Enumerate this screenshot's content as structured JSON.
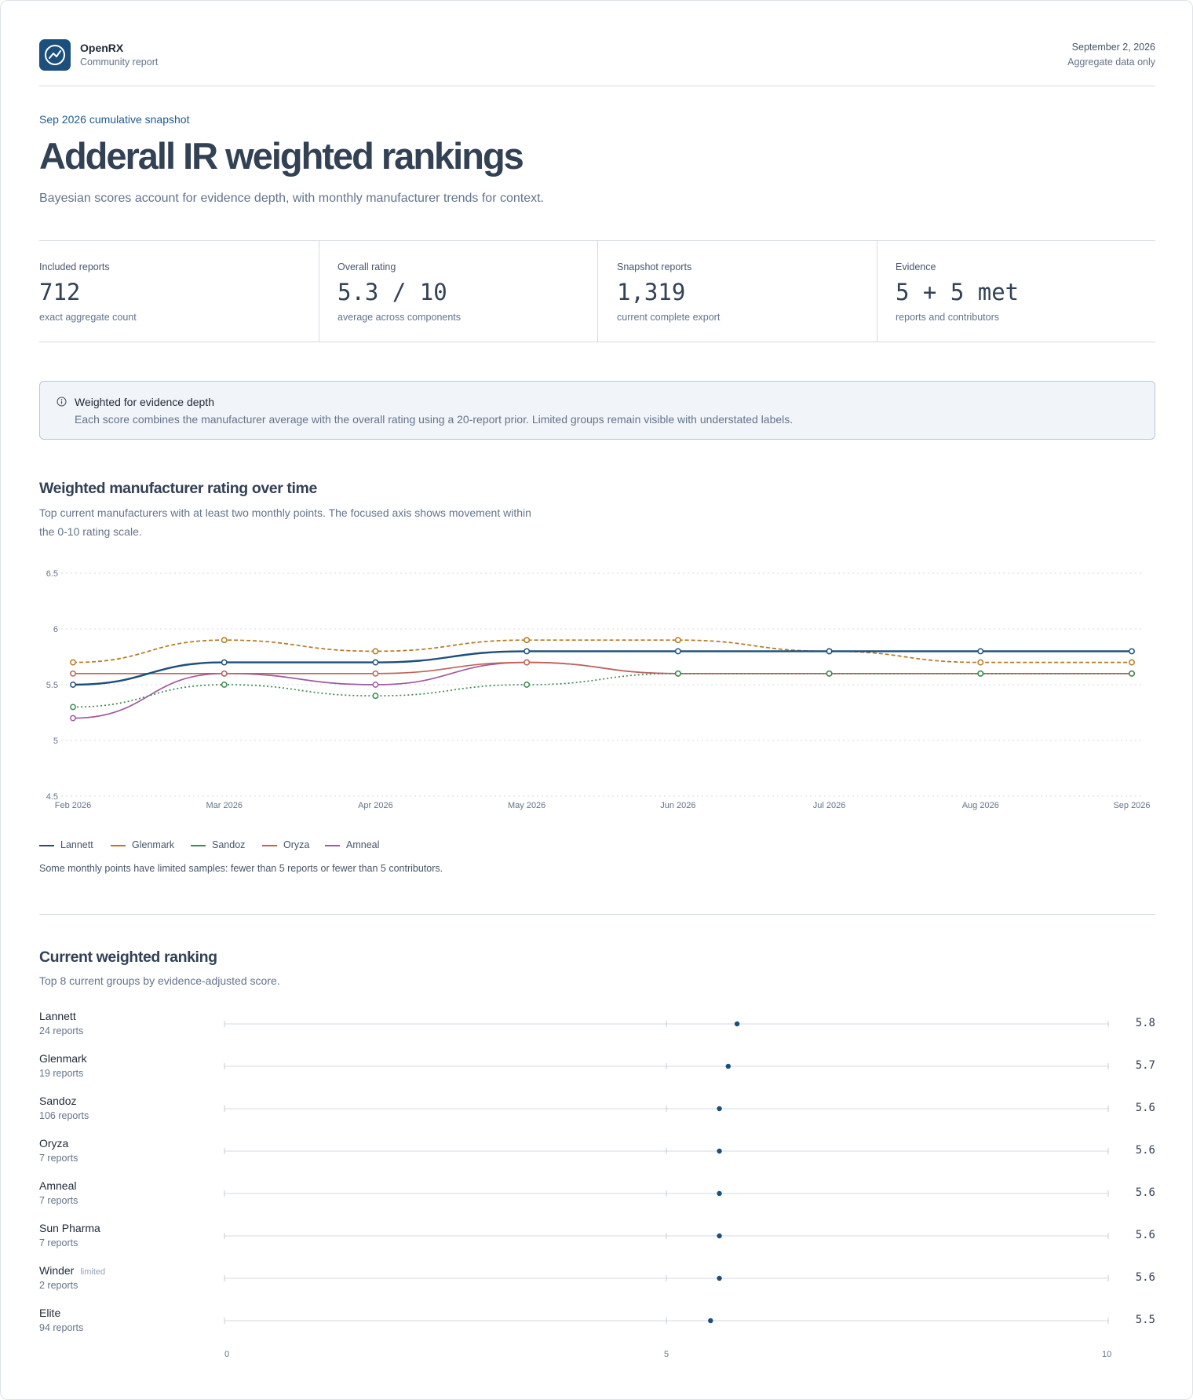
{
  "header": {
    "brand": "OpenRX",
    "brand_sub": "Community report",
    "date": "September 2, 2026",
    "note": "Aggregate data only"
  },
  "hero": {
    "eyebrow": "Sep 2026 cumulative snapshot",
    "title": "Adderall IR weighted rankings",
    "subtitle": "Bayesian scores account for evidence depth, with monthly manufacturer trends for context."
  },
  "stats": [
    {
      "label": "Included reports",
      "value": "712",
      "note": "exact aggregate count"
    },
    {
      "label": "Overall rating",
      "value": "5.3 / 10",
      "note": "average across components"
    },
    {
      "label": "Snapshot reports",
      "value": "1,319",
      "note": "current complete export"
    },
    {
      "label": "Evidence",
      "value": "5 + 5 met",
      "note": "reports and contributors"
    }
  ],
  "callout": {
    "title": "Weighted for evidence depth",
    "body": "Each score combines the manufacturer average with the overall rating using a 20-report prior. Limited groups remain visible with understated labels."
  },
  "trend": {
    "title": "Weighted manufacturer rating over time",
    "desc_line1": "Top current manufacturers with at least two monthly points. The focused axis shows movement within",
    "desc_line2": "the 0-10 rating scale.",
    "limited_note": "Some monthly points have limited samples: fewer than 5 reports or fewer than 5 contributors."
  },
  "ranking": {
    "title": "Current weighted ranking",
    "desc": "Top 8 current groups by evidence-adjusted score.",
    "limited_label": "limited"
  },
  "colors": {
    "Lannett": "#1d4f7c",
    "Glenmark": "#b7791f",
    "Sandoz": "#3d8b4d",
    "Oryza": "#c0625a",
    "Amneal": "#a05a9e"
  },
  "chart_data": [
    {
      "type": "line",
      "x": [
        "Feb 2026",
        "Mar 2026",
        "Apr 2026",
        "May 2026",
        "Jun 2026",
        "Jul 2026",
        "Aug 2026",
        "Sep 2026"
      ],
      "ylim": [
        4.5,
        6.5
      ],
      "yticks": [
        "4.5",
        "5",
        "5.5",
        "6",
        "6.5"
      ],
      "grid": true,
      "legend": "bottom-left",
      "series": [
        {
          "name": "Lannett",
          "style": "solid",
          "values": [
            5.5,
            5.7,
            5.7,
            5.8,
            5.8,
            5.8,
            5.8,
            5.8
          ]
        },
        {
          "name": "Glenmark",
          "style": "dashed",
          "values": [
            5.7,
            5.9,
            5.8,
            5.9,
            5.9,
            5.8,
            5.7,
            5.7
          ]
        },
        {
          "name": "Sandoz",
          "style": "dotted",
          "values": [
            5.3,
            5.5,
            5.4,
            5.5,
            5.6,
            5.6,
            5.6,
            5.6
          ]
        },
        {
          "name": "Oryza",
          "style": "solid",
          "values": [
            5.6,
            5.6,
            5.6,
            5.7,
            5.6,
            5.6,
            5.6,
            5.6
          ]
        },
        {
          "name": "Amneal",
          "style": "solid",
          "values": [
            5.2,
            5.6,
            5.5,
            5.7,
            5.6,
            5.6,
            5.6,
            5.6
          ]
        }
      ]
    },
    {
      "type": "scatter",
      "xlim": [
        0,
        10
      ],
      "xticks": [
        "0",
        "5",
        "10"
      ],
      "rows": [
        {
          "name": "Lannett",
          "reports": "24 reports",
          "score": 5.8,
          "score_label": "5.8",
          "limited": false
        },
        {
          "name": "Glenmark",
          "reports": "19 reports",
          "score": 5.7,
          "score_label": "5.7",
          "limited": false
        },
        {
          "name": "Sandoz",
          "reports": "106 reports",
          "score": 5.6,
          "score_label": "5.6",
          "limited": false
        },
        {
          "name": "Oryza",
          "reports": "7 reports",
          "score": 5.6,
          "score_label": "5.6",
          "limited": false
        },
        {
          "name": "Amneal",
          "reports": "7 reports",
          "score": 5.6,
          "score_label": "5.6",
          "limited": false
        },
        {
          "name": "Sun Pharma",
          "reports": "7 reports",
          "score": 5.6,
          "score_label": "5.6",
          "limited": false
        },
        {
          "name": "Winder",
          "reports": "2 reports",
          "score": 5.6,
          "score_label": "5.6",
          "limited": true
        },
        {
          "name": "Elite",
          "reports": "94 reports",
          "score": 5.5,
          "score_label": "5.5",
          "limited": false
        }
      ]
    }
  ]
}
